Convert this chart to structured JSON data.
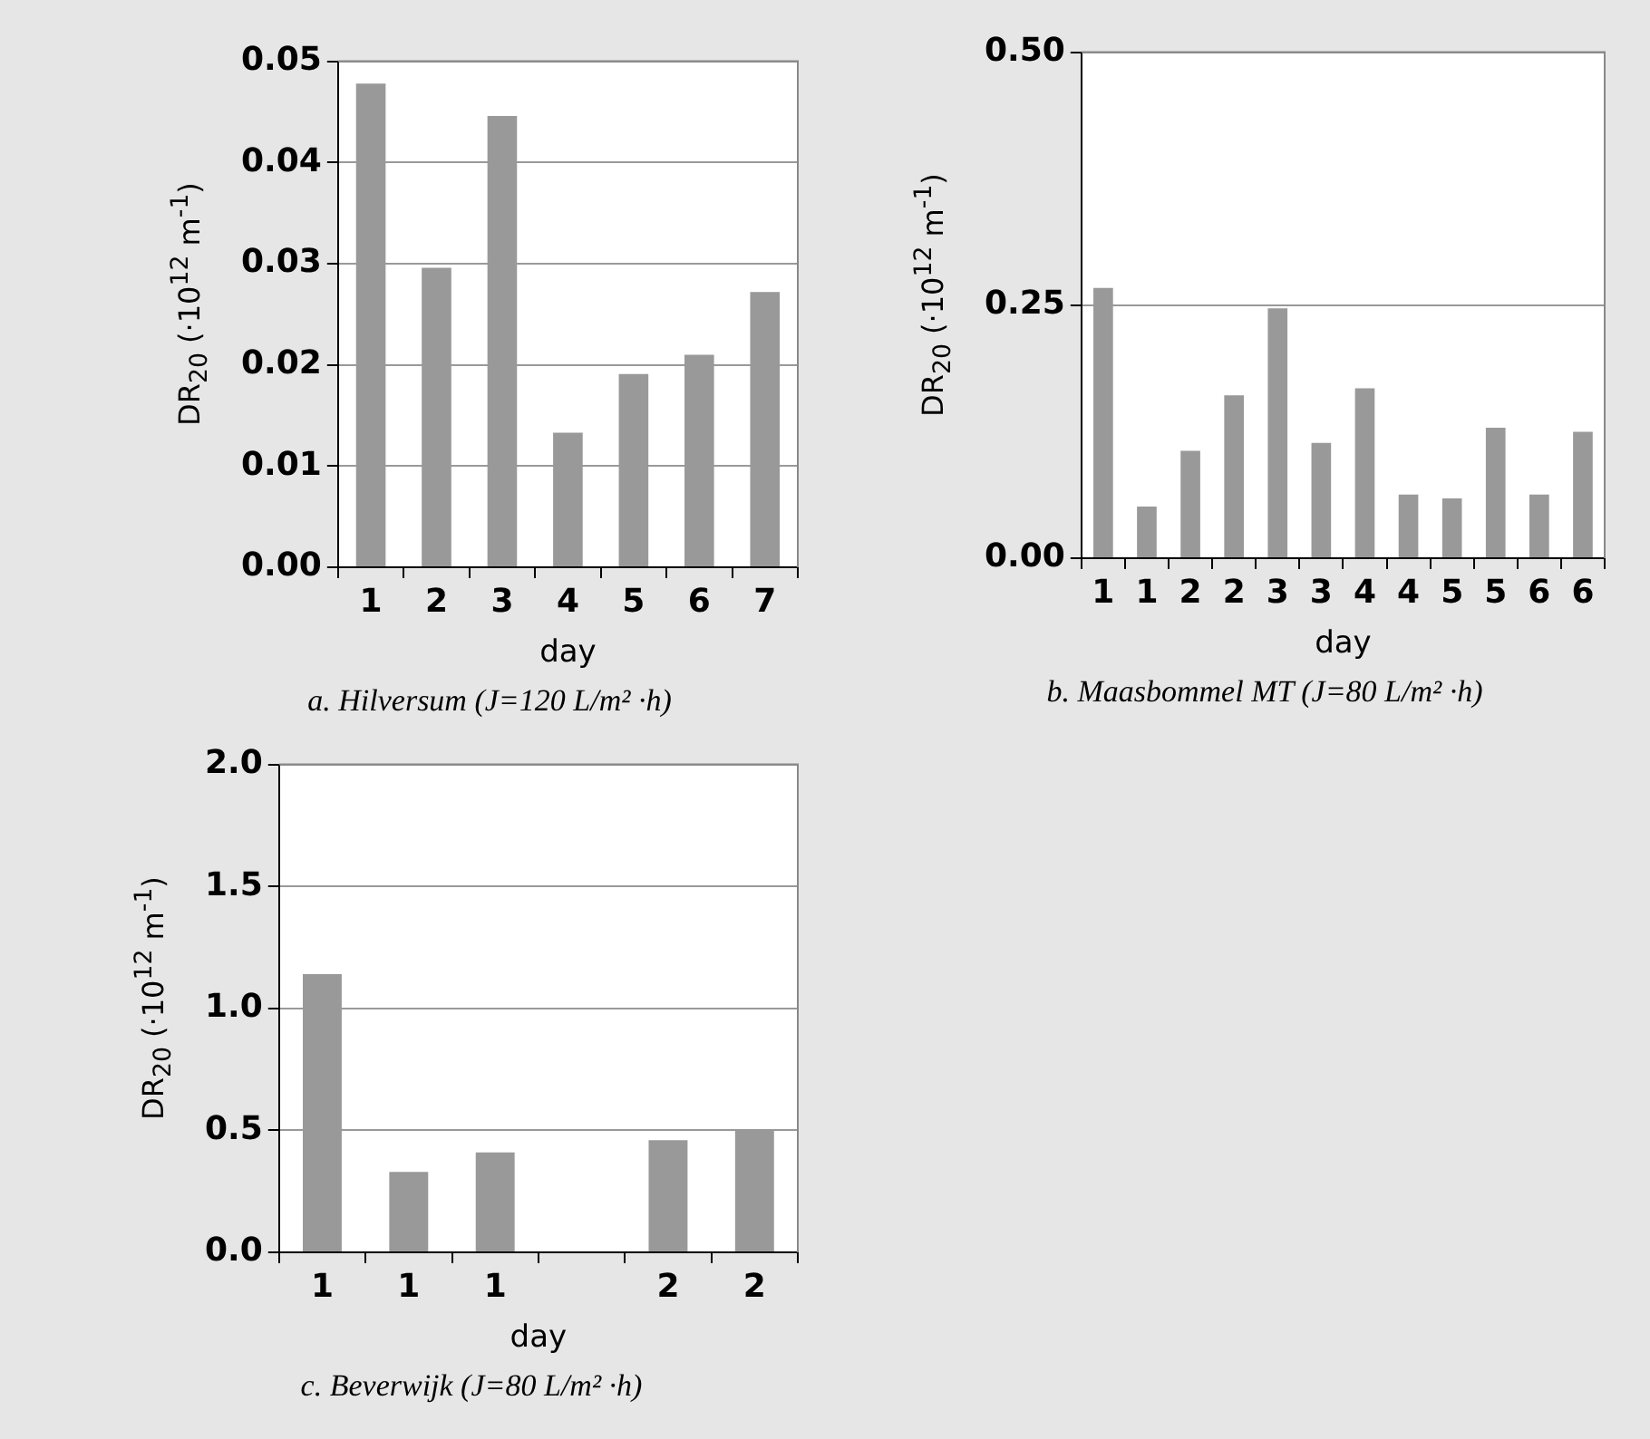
{
  "chart_data": [
    {
      "type": "bar",
      "title": "a. Hilversum (J=120 L/m² ·h)",
      "xlabel": "day",
      "ylabel": "DR$_{20}$ (·10$^{12}$ m$^{-1}$)",
      "categories": [
        "1",
        "2",
        "3",
        "4",
        "5",
        "6",
        "7"
      ],
      "values": [
        0.0478,
        0.0296,
        0.0446,
        0.0133,
        0.0191,
        0.021,
        0.0272
      ],
      "color": "#999999",
      "ylim": [
        0,
        0.05
      ],
      "yticks": [
        {
          "value": 0,
          "label": "0.00"
        },
        {
          "value": 0.01,
          "label": "0.01"
        },
        {
          "value": 0.02,
          "label": "0.02"
        },
        {
          "value": 0.03,
          "label": "0.03"
        },
        {
          "value": 0.04,
          "label": "0.04"
        },
        {
          "value": 0.05,
          "label": "0.05"
        }
      ],
      "grid": "y"
    },
    {
      "type": "bar",
      "title": "b. Maasbommel MT (J=80 L/m² ·h)",
      "xlabel": "day",
      "ylabel": "DR$_{20}$ (·10$^{12}$ m$^{-1}$)",
      "categories": [
        "1",
        "1",
        "2",
        "2",
        "3",
        "3",
        "4",
        "4",
        "5",
        "5",
        "6",
        "6"
      ],
      "values": [
        0.267,
        0.051,
        0.106,
        0.161,
        0.247,
        0.114,
        0.168,
        0.063,
        0.059,
        0.129,
        0.063,
        0.125
      ],
      "color": "#999999",
      "ylim": [
        0,
        0.5
      ],
      "yticks": [
        {
          "value": 0,
          "label": "0.00"
        },
        {
          "value": 0.25,
          "label": "0.25"
        },
        {
          "value": 0.5,
          "label": "0.50"
        }
      ],
      "grid": "y"
    },
    {
      "type": "bar",
      "title": "c. Beverwijk (J=80 L/m² ·h)",
      "xlabel": "day",
      "ylabel": "DR$_{20}$ (·10$^{12}$ m$^{-1}$)",
      "categories": [
        "1",
        "1",
        "1",
        null,
        "2",
        "2"
      ],
      "values": [
        1.14,
        0.33,
        0.41,
        null,
        0.46,
        0.5
      ],
      "color": "#999999",
      "ylim": [
        0,
        2
      ],
      "yticks": [
        {
          "value": 0,
          "label": "0.0"
        },
        {
          "value": 0.5,
          "label": "0.5"
        },
        {
          "value": 1,
          "label": "1.0"
        },
        {
          "value": 1.5,
          "label": "1.5"
        },
        {
          "value": 2,
          "label": "2.0"
        }
      ],
      "grid": "y"
    }
  ]
}
